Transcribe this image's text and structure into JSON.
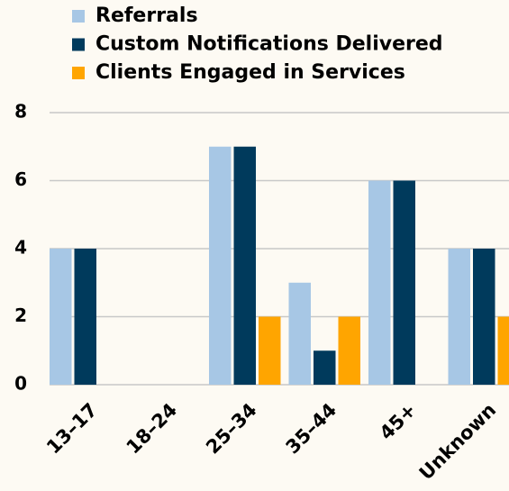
{
  "chart_data": {
    "type": "bar",
    "categories": [
      "13–17",
      "18–24",
      "25–34",
      "35–44",
      "45+",
      "Unknown"
    ],
    "series": [
      {
        "name": "Referrals",
        "color": "#a7c7e5",
        "values": [
          4,
          0,
          7,
          3,
          6,
          4
        ]
      },
      {
        "name": "Custom Notifications Delivered",
        "color": "#003a5c",
        "values": [
          4,
          0,
          7,
          1,
          6,
          4
        ]
      },
      {
        "name": "Clients Engaged in Services",
        "color": "#ffa500",
        "values": [
          0,
          0,
          2,
          2,
          0,
          2
        ]
      }
    ],
    "ylim": [
      0,
      8
    ],
    "yticks": [
      0,
      2,
      4,
      6,
      8
    ],
    "grid": true,
    "legend": "top"
  }
}
